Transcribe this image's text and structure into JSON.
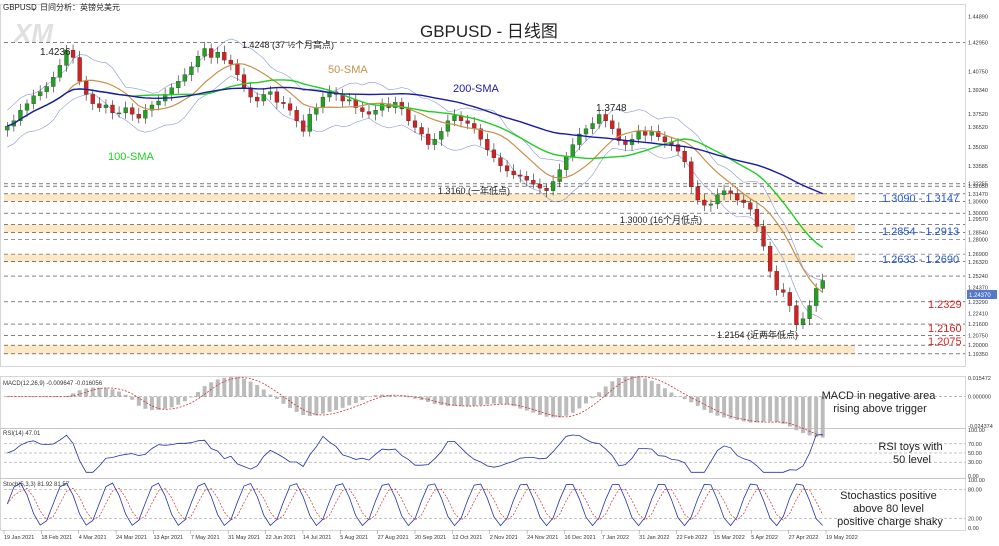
{
  "header": {
    "symbol": "GBPUSD",
    "subtitle": "，日间分析：英镑兑美元",
    "title": "GBPUSD - 日线图",
    "watermark": "XM"
  },
  "colors": {
    "candle_up": "#22a022",
    "candle_down": "#d42020",
    "sma50": "#c8904a",
    "sma100": "#22cc22",
    "sma200": "#1a1aa8",
    "blue_label": "#2255cc",
    "red_label": "#dd2222",
    "zone_fill": "#fde2b8",
    "bollinger": "#8899cc"
  },
  "chart_data": [
    {
      "type": "candlestick",
      "x": [
        "19 Jan 2021",
        "18 Feb 2021",
        "4 Mar 2021",
        "24 Mar 2021",
        "13 Apr 2021",
        "7 May 2021",
        "31 May 2021",
        "22 Jun 2021",
        "14 Jul 2021",
        "5 Aug 2021",
        "27 Aug 2021",
        "20 Sep 2021",
        "12 Oct 2021",
        "2 Nov 2021",
        "24 Nov 2021",
        "16 Dec 2021",
        "7 Jan 2022",
        "31 Jan 2022",
        "22 Feb 2022",
        "15 Mar 2022",
        "5 Apr 2022",
        "27 Apr 2022",
        "19 May 2022"
      ],
      "ylim": [
        1.185,
        1.457
      ],
      "ytick_labels": [
        "1.44890",
        "1.42950",
        "1.40750",
        "1.39340",
        "1.37520",
        "1.36520",
        "1.35030",
        "1.33585",
        "1.32255",
        "1.32050",
        "1.31470",
        "1.30900",
        "1.30000",
        "1.29570",
        "1.28540",
        "1.28000",
        "1.26900",
        "1.26320",
        "1.25240",
        "1.24370",
        "1.23290",
        "1.22410",
        "1.21600",
        "1.20750",
        "1.20000",
        "1.19350"
      ],
      "price_marker": "1.24370",
      "close_series": [
        1.366,
        1.37,
        1.378,
        1.383,
        1.389,
        1.392,
        1.396,
        1.403,
        1.412,
        1.4236,
        1.418,
        1.4,
        1.39,
        1.383,
        1.38,
        1.382,
        1.376,
        1.376,
        1.38,
        1.375,
        1.372,
        1.378,
        1.382,
        1.385,
        1.39,
        1.395,
        1.4,
        1.405,
        1.411,
        1.419,
        1.4248,
        1.418,
        1.422,
        1.416,
        1.413,
        1.405,
        1.395,
        1.388,
        1.385,
        1.39,
        1.392,
        1.384,
        1.383,
        1.378,
        1.37,
        1.362,
        1.375,
        1.38,
        1.388,
        1.392,
        1.39,
        1.385,
        1.386,
        1.38,
        1.377,
        1.375,
        1.378,
        1.383,
        1.38,
        1.384,
        1.379,
        1.37,
        1.365,
        1.36,
        1.352,
        1.356,
        1.362,
        1.37,
        1.374,
        1.37,
        1.368,
        1.364,
        1.356,
        1.348,
        1.342,
        1.336,
        1.332,
        1.329,
        1.328,
        1.325,
        1.322,
        1.319,
        1.317,
        1.324,
        1.333,
        1.343,
        1.352,
        1.36,
        1.364,
        1.368,
        1.3748,
        1.37,
        1.364,
        1.355,
        1.352,
        1.356,
        1.362,
        1.359,
        1.362,
        1.358,
        1.354,
        1.352,
        1.347,
        1.339,
        1.32,
        1.31,
        1.306,
        1.307,
        1.314,
        1.317,
        1.315,
        1.31,
        1.308,
        1.303,
        1.29,
        1.275,
        1.256,
        1.242,
        1.24,
        1.23,
        1.2154,
        1.22,
        1.23,
        1.243,
        1.249
      ],
      "annotations": [
        "1.4236",
        "1.4248 (37 ½个月高点)",
        "1.3748",
        "1.3160 (一年低点)",
        "1.3000 (16个月低点)",
        "1.2154 (近两年低点)"
      ],
      "lines": [
        {
          "name": "50-SMA",
          "color": "#c8904a"
        },
        {
          "name": "100-SMA",
          "color": "#22cc22"
        },
        {
          "name": "200-SMA",
          "color": "#1a1aa8"
        }
      ],
      "levels": [
        {
          "label": "1.3090 - 1.3147",
          "low": 1.309,
          "high": 1.3147,
          "style": "zone",
          "color": "#2255cc"
        },
        {
          "label": "1.2854 - 1.2913",
          "low": 1.2854,
          "high": 1.2913,
          "style": "zone",
          "color": "#2255cc"
        },
        {
          "label": "1.2633 - 1.2690",
          "low": 1.2633,
          "high": 1.269,
          "style": "zone",
          "color": "#2255cc"
        },
        {
          "label": "1.2329",
          "value": 1.2329,
          "color": "#dd2222"
        },
        {
          "label": "1.2160",
          "value": 1.216,
          "color": "#dd2222"
        },
        {
          "label": "1.2075",
          "value": 1.2075,
          "color": "#dd2222"
        }
      ]
    },
    {
      "type": "bar",
      "title": "MACD(12,26,9) -0.009647 -0.016056",
      "ylim": [
        -0.024374,
        0.015472
      ],
      "ytick_labels": [
        "0.015472",
        "0.000000",
        "-0.024374"
      ],
      "annotation": "MACD in negative area\nrising above trigger"
    },
    {
      "type": "line",
      "title": "RSI(14) 47.01",
      "ylim": [
        0,
        100
      ],
      "ytick_labels": [
        "100.00",
        "70.00",
        "50.00",
        "30.00",
        "0.00"
      ],
      "annotation": "RSI toys with\n50 level"
    },
    {
      "type": "line",
      "title": "Stoch(5,3,3) 81.92 81.57",
      "ylim": [
        0,
        100
      ],
      "ytick_labels": [
        "100.00",
        "80.00",
        "20.00",
        "0.00"
      ],
      "annotation": "Stochastics positive\nabove 80 level\npositive charge shaky"
    }
  ]
}
